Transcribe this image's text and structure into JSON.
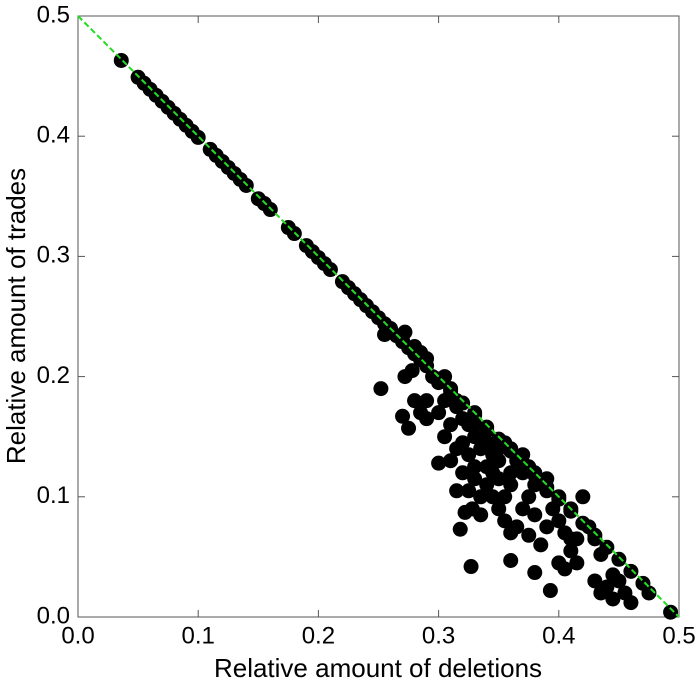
{
  "chart_data": {
    "type": "scatter",
    "xlabel": "Relative amount of deletions",
    "ylabel": "Relative amount of trades",
    "xlim": [
      0,
      0.5
    ],
    "ylim": [
      0,
      0.5
    ],
    "xticks": [
      {
        "value": 0,
        "label": "0.0"
      },
      0.1,
      0.2,
      0.3,
      0.4,
      0.5
    ],
    "yticks": [
      {
        "value": 0,
        "label": "0.0"
      },
      0.1,
      0.2,
      0.3,
      0.4,
      0.5
    ],
    "color": "#000000",
    "reference_line": {
      "x": [
        0,
        0.5
      ],
      "y": [
        0.5,
        0
      ],
      "color": "#22dd22"
    },
    "x": [
      0.036,
      0.05,
      0.055,
      0.06,
      0.065,
      0.07,
      0.075,
      0.08,
      0.085,
      0.09,
      0.095,
      0.1,
      0.11,
      0.115,
      0.12,
      0.125,
      0.13,
      0.135,
      0.14,
      0.15,
      0.155,
      0.16,
      0.175,
      0.18,
      0.19,
      0.195,
      0.2,
      0.205,
      0.21,
      0.22,
      0.225,
      0.23,
      0.235,
      0.24,
      0.245,
      0.25,
      0.255,
      0.26,
      0.265,
      0.27,
      0.275,
      0.28,
      0.285,
      0.29,
      0.3,
      0.31,
      0.32,
      0.33,
      0.34,
      0.35,
      0.36,
      0.37,
      0.38,
      0.39,
      0.4,
      0.41,
      0.42,
      0.43,
      0.44,
      0.45,
      0.46,
      0.47,
      0.252,
      0.27,
      0.275,
      0.255,
      0.26,
      0.27,
      0.272,
      0.28,
      0.29,
      0.285,
      0.278,
      0.272,
      0.29,
      0.295,
      0.3,
      0.28,
      0.285,
      0.29,
      0.3,
      0.305,
      0.31,
      0.315,
      0.32,
      0.305,
      0.31,
      0.3,
      0.31,
      0.315,
      0.32,
      0.325,
      0.33,
      0.335,
      0.33,
      0.32,
      0.315,
      0.325,
      0.318,
      0.322,
      0.328,
      0.335,
      0.327,
      0.34,
      0.345,
      0.35,
      0.34,
      0.345,
      0.35,
      0.355,
      0.36,
      0.36,
      0.365,
      0.37,
      0.355,
      0.36,
      0.365,
      0.37,
      0.375,
      0.38,
      0.36,
      0.375,
      0.38,
      0.385,
      0.39,
      0.395,
      0.4,
      0.39,
      0.4,
      0.405,
      0.41,
      0.415,
      0.41,
      0.405,
      0.415,
      0.4,
      0.38,
      0.393,
      0.42,
      0.41,
      0.425,
      0.43,
      0.435,
      0.43,
      0.435,
      0.44,
      0.445,
      0.45,
      0.445,
      0.455,
      0.46,
      0.475,
      0.493,
      0.35,
      0.355,
      0.34,
      0.33,
      0.36,
      0.37,
      0.375,
      0.38,
      0.39,
      0.33,
      0.325,
      0.34,
      0.345,
      0.35,
      0.335,
      0.33,
      0.305,
      0.31,
      0.315
    ],
    "y": [
      0.463,
      0.449,
      0.444,
      0.439,
      0.434,
      0.429,
      0.424,
      0.419,
      0.414,
      0.409,
      0.404,
      0.399,
      0.389,
      0.384,
      0.379,
      0.374,
      0.369,
      0.364,
      0.359,
      0.348,
      0.344,
      0.339,
      0.324,
      0.319,
      0.309,
      0.304,
      0.299,
      0.294,
      0.289,
      0.279,
      0.274,
      0.269,
      0.264,
      0.259,
      0.254,
      0.249,
      0.244,
      0.239,
      0.234,
      0.229,
      0.224,
      0.219,
      0.214,
      0.209,
      0.198,
      0.188,
      0.178,
      0.168,
      0.158,
      0.148,
      0.138,
      0.128,
      0.118,
      0.108,
      0.098,
      0.088,
      0.078,
      0.068,
      0.058,
      0.048,
      0.038,
      0.028,
      0.19,
      0.167,
      0.157,
      0.235,
      0.24,
      0.23,
      0.237,
      0.225,
      0.215,
      0.22,
      0.205,
      0.2,
      0.18,
      0.2,
      0.195,
      0.18,
      0.17,
      0.165,
      0.17,
      0.18,
      0.19,
      0.175,
      0.165,
      0.15,
      0.16,
      0.128,
      0.13,
      0.14,
      0.145,
      0.135,
      0.15,
      0.14,
      0.125,
      0.12,
      0.105,
      0.105,
      0.073,
      0.087,
      0.09,
      0.085,
      0.042,
      0.11,
      0.12,
      0.13,
      0.125,
      0.1,
      0.09,
      0.1,
      0.11,
      0.12,
      0.13,
      0.12,
      0.08,
      0.07,
      0.075,
      0.09,
      0.1,
      0.11,
      0.047,
      0.068,
      0.085,
      0.06,
      0.075,
      0.09,
      0.1,
      0.105,
      0.08,
      0.07,
      0.065,
      0.065,
      0.055,
      0.04,
      0.045,
      0.045,
      0.037,
      0.022,
      0.1,
      0.09,
      0.075,
      0.065,
      0.052,
      0.03,
      0.02,
      0.025,
      0.035,
      0.03,
      0.015,
      0.02,
      0.012,
      0.02,
      0.004,
      0.14,
      0.145,
      0.155,
      0.16,
      0.14,
      0.135,
      0.125,
      0.12,
      0.115,
      0.17,
      0.16,
      0.145,
      0.135,
      0.115,
      0.1,
      0.115,
      0.2,
      0.185,
      0.18
    ]
  }
}
